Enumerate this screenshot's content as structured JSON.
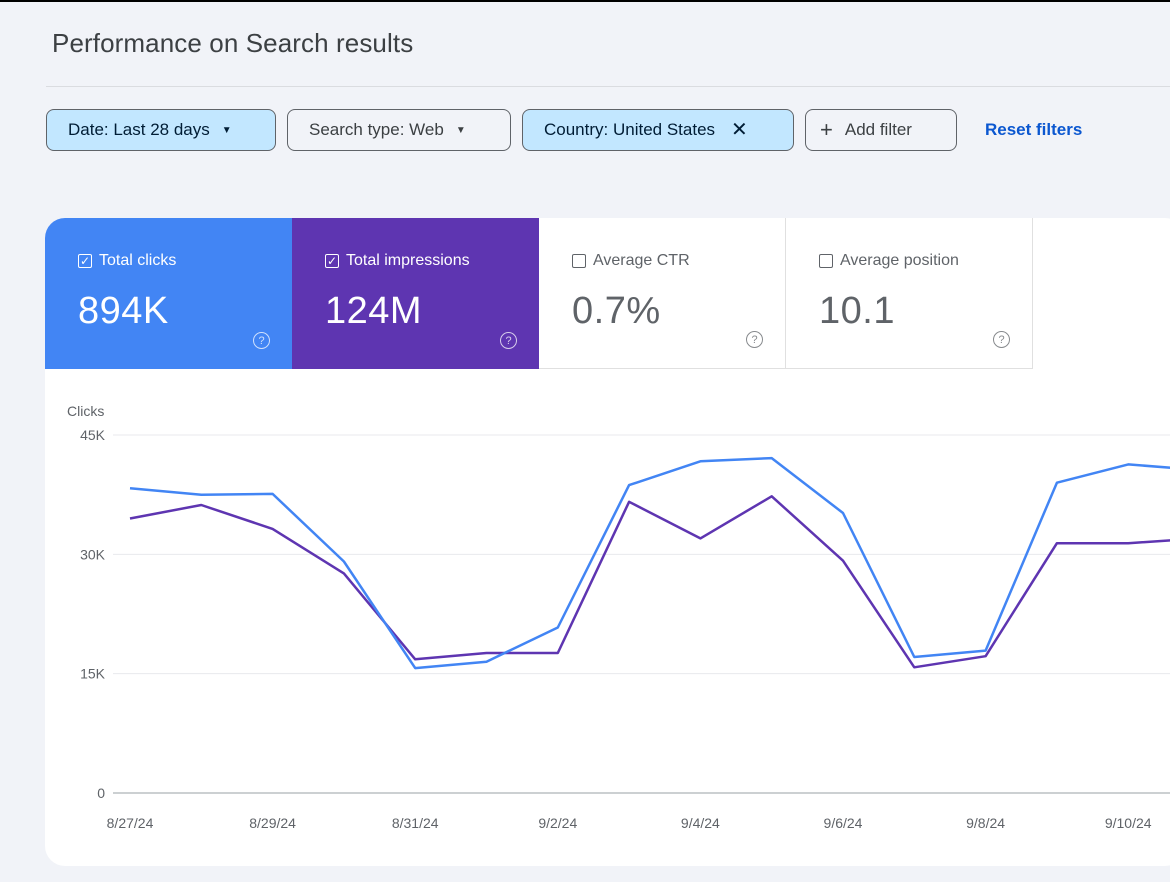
{
  "page": {
    "title": "Performance on Search results"
  },
  "filters": {
    "date_label": "Date: Last 28 days",
    "search_type_label": "Search type: Web",
    "country_label": "Country: United States",
    "add_filter_label": "Add filter",
    "reset_label": "Reset filters"
  },
  "metrics": [
    {
      "label": "Total clicks",
      "value": "894K",
      "checked": true,
      "color": "#4285f4"
    },
    {
      "label": "Total impressions",
      "value": "124M",
      "checked": true,
      "color": "#5e35b1"
    },
    {
      "label": "Average CTR",
      "value": "0.7%",
      "checked": false
    },
    {
      "label": "Average position",
      "value": "10.1",
      "checked": false
    }
  ],
  "chart_data": {
    "type": "line",
    "ylabel": "Clicks",
    "ylim": [
      0,
      45000
    ],
    "y_ticks": [
      {
        "value": 0,
        "label": "0"
      },
      {
        "value": 15000,
        "label": "15K"
      },
      {
        "value": 30000,
        "label": "30K"
      },
      {
        "value": 45000,
        "label": "45K"
      }
    ],
    "x_tick_labels": [
      "8/27/24",
      "8/29/24",
      "8/31/24",
      "9/2/24",
      "9/4/24",
      "9/6/24",
      "9/8/24",
      "9/10/24"
    ],
    "x": [
      "8/27/24",
      "8/28/24",
      "8/29/24",
      "8/30/24",
      "8/31/24",
      "9/1/24",
      "9/2/24",
      "9/3/24",
      "9/4/24",
      "9/5/24",
      "9/6/24",
      "9/7/24",
      "9/8/24",
      "9/9/24",
      "9/10/24",
      "9/11/24"
    ],
    "grid": true,
    "series": [
      {
        "color": "#4285f4",
        "values": [
          38300,
          37500,
          37600,
          29100,
          15700,
          16500,
          20800,
          38700,
          41700,
          42100,
          35200,
          17100,
          17900,
          39000,
          41300,
          40600
        ]
      },
      {
        "color": "#5e35b1",
        "values": [
          34500,
          36200,
          33200,
          27600,
          16800,
          17600,
          17600,
          36600,
          32000,
          37300,
          29200,
          15800,
          17200,
          31400,
          31400,
          32000
        ]
      }
    ]
  }
}
